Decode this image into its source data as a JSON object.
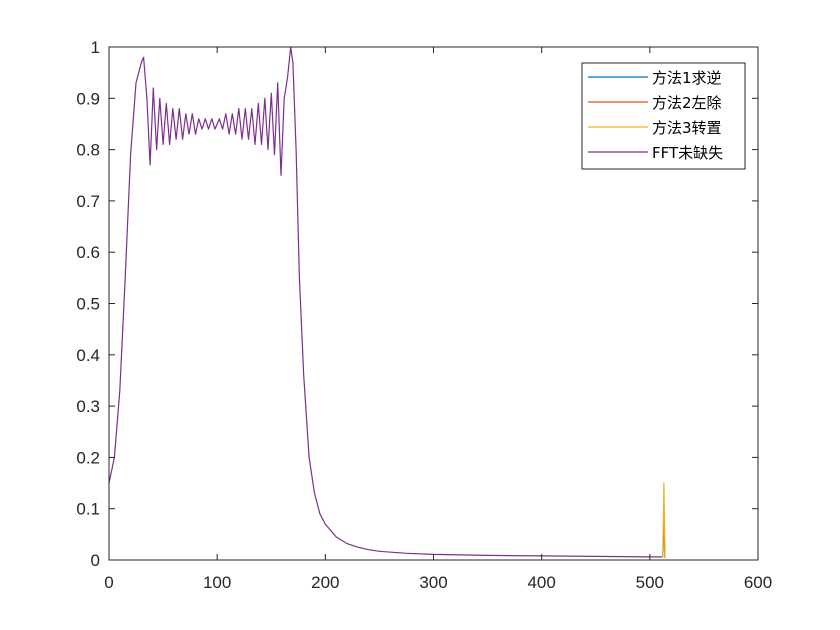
{
  "chart_data": {
    "type": "line",
    "title": "",
    "xlabel": "",
    "ylabel": "",
    "xlim": [
      0,
      600
    ],
    "ylim": [
      0,
      1
    ],
    "grid": false,
    "legend_position": "top-right",
    "x_ticks": [
      0,
      100,
      200,
      300,
      400,
      500,
      600
    ],
    "y_ticks": [
      0,
      0.1,
      0.2,
      0.3,
      0.4,
      0.5,
      0.6,
      0.7,
      0.8,
      0.9,
      1
    ],
    "series": [
      {
        "name": "方法1求逆",
        "color": "#0072BD",
        "x": [
          511,
          512,
          513,
          514
        ],
        "y": [
          0.006,
          0.006,
          0.075,
          0.004
        ]
      },
      {
        "name": "方法2左除",
        "color": "#D95319",
        "x": [
          511,
          512,
          513,
          514
        ],
        "y": [
          0.006,
          0.006,
          0.075,
          0.004
        ]
      },
      {
        "name": "方法3转置",
        "color": "#EDB120",
        "x": [
          511,
          512,
          513,
          514
        ],
        "y": [
          0.006,
          0.006,
          0.15,
          0.004
        ]
      },
      {
        "name": "FFT未缺失",
        "color": "#7E2F8E",
        "x": [
          0,
          5,
          10,
          15,
          20,
          25,
          30,
          32,
          35,
          38,
          41,
          44,
          47,
          50,
          53,
          56,
          59,
          62,
          65,
          68,
          71,
          74,
          77,
          80,
          83,
          86,
          89,
          92,
          95,
          98,
          100,
          102,
          105,
          108,
          111,
          114,
          117,
          120,
          123,
          126,
          129,
          132,
          135,
          138,
          141,
          144,
          147,
          150,
          153,
          156,
          159,
          162,
          165,
          168,
          170,
          173,
          176,
          180,
          185,
          190,
          195,
          200,
          210,
          220,
          230,
          240,
          250,
          275,
          300,
          350,
          400,
          450,
          500,
          511
        ],
        "y": [
          0.15,
          0.2,
          0.33,
          0.55,
          0.79,
          0.93,
          0.97,
          0.98,
          0.9,
          0.77,
          0.92,
          0.8,
          0.9,
          0.81,
          0.89,
          0.81,
          0.88,
          0.82,
          0.88,
          0.82,
          0.87,
          0.83,
          0.87,
          0.83,
          0.86,
          0.84,
          0.86,
          0.84,
          0.86,
          0.84,
          0.85,
          0.86,
          0.84,
          0.87,
          0.83,
          0.87,
          0.83,
          0.88,
          0.82,
          0.88,
          0.82,
          0.88,
          0.81,
          0.89,
          0.81,
          0.9,
          0.8,
          0.91,
          0.79,
          0.93,
          0.75,
          0.9,
          0.94,
          1.0,
          0.97,
          0.8,
          0.55,
          0.36,
          0.2,
          0.13,
          0.09,
          0.07,
          0.045,
          0.032,
          0.025,
          0.02,
          0.017,
          0.013,
          0.011,
          0.009,
          0.008,
          0.007,
          0.006,
          0.006
        ]
      }
    ]
  }
}
